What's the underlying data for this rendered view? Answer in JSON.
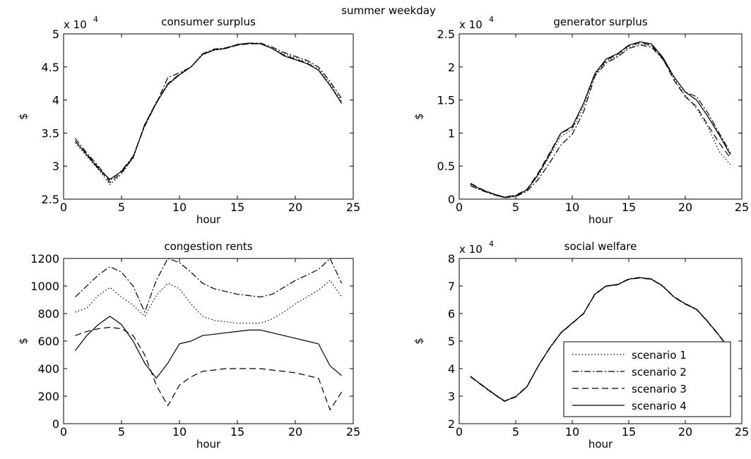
{
  "figure": {
    "suptitle": "summer weekday"
  },
  "chart_data": [
    {
      "type": "line",
      "title": "consumer surplus",
      "xlabel": "hour",
      "ylabel": "$",
      "exponent_label": "x 10",
      "exponent": "4",
      "xlim": [
        0,
        25
      ],
      "ylim": [
        2.5,
        5
      ],
      "xticks": [
        0,
        5,
        10,
        15,
        20,
        25
      ],
      "yticks": [
        2.5,
        3,
        3.5,
        4,
        4.5,
        5
      ],
      "x": [
        1,
        2,
        3,
        4,
        5,
        6,
        7,
        8,
        9,
        10,
        11,
        12,
        13,
        14,
        15,
        16,
        17,
        18,
        19,
        20,
        21,
        22,
        23,
        24
      ],
      "series": [
        {
          "name": "scenario 1",
          "dash": "dotted",
          "values": [
            3.35,
            3.15,
            2.95,
            2.72,
            2.88,
            3.12,
            3.62,
            3.97,
            4.22,
            4.38,
            4.5,
            4.68,
            4.75,
            4.78,
            4.83,
            4.85,
            4.85,
            4.78,
            4.7,
            4.64,
            4.58,
            4.47,
            4.25,
            3.98
          ]
        },
        {
          "name": "scenario 2",
          "dash": "dashdot",
          "values": [
            3.42,
            3.2,
            3.0,
            2.78,
            2.93,
            3.15,
            3.6,
            3.95,
            4.34,
            4.41,
            4.5,
            4.7,
            4.77,
            4.79,
            4.84,
            4.86,
            4.86,
            4.8,
            4.72,
            4.66,
            4.6,
            4.5,
            4.28,
            4.02
          ]
        },
        {
          "name": "scenario 3",
          "dash": "dashed",
          "values": [
            3.38,
            3.18,
            2.98,
            2.75,
            2.9,
            3.13,
            3.63,
            3.96,
            4.25,
            4.39,
            4.5,
            4.69,
            4.76,
            4.78,
            4.83,
            4.85,
            4.85,
            4.78,
            4.68,
            4.62,
            4.56,
            4.45,
            4.22,
            3.95
          ]
        },
        {
          "name": "scenario 4",
          "dash": "solid",
          "values": [
            3.38,
            3.17,
            2.96,
            2.8,
            2.92,
            3.13,
            3.62,
            3.95,
            4.24,
            4.38,
            4.5,
            4.69,
            4.76,
            4.78,
            4.84,
            4.86,
            4.85,
            4.78,
            4.67,
            4.61,
            4.55,
            4.45,
            4.22,
            3.95
          ]
        }
      ]
    },
    {
      "type": "line",
      "title": "generator surplus",
      "xlabel": "hour",
      "ylabel": "$",
      "exponent_label": "x 10",
      "exponent": "4",
      "xlim": [
        0,
        25
      ],
      "ylim": [
        0,
        2.5
      ],
      "xticks": [
        0,
        5,
        10,
        15,
        20,
        25
      ],
      "yticks": [
        0,
        0.5,
        1,
        1.5,
        2,
        2.5
      ],
      "x": [
        1,
        2,
        3,
        4,
        5,
        6,
        7,
        8,
        9,
        10,
        11,
        12,
        13,
        14,
        15,
        16,
        17,
        18,
        19,
        20,
        21,
        22,
        23,
        24
      ],
      "series": [
        {
          "name": "scenario 1",
          "dash": "dotted",
          "values": [
            0.22,
            0.14,
            0.07,
            0.02,
            0.05,
            0.14,
            0.35,
            0.65,
            0.95,
            1.05,
            1.4,
            1.88,
            2.08,
            2.17,
            2.3,
            2.35,
            2.32,
            2.13,
            1.82,
            1.57,
            1.37,
            1.09,
            0.72,
            0.52
          ]
        },
        {
          "name": "scenario 2",
          "dash": "dashdot",
          "values": [
            0.2,
            0.13,
            0.07,
            0.02,
            0.04,
            0.12,
            0.3,
            0.55,
            0.82,
            0.98,
            1.32,
            1.86,
            2.06,
            2.15,
            2.28,
            2.33,
            2.3,
            2.12,
            1.85,
            1.62,
            1.55,
            1.3,
            1.0,
            0.7
          ]
        },
        {
          "name": "scenario 3",
          "dash": "dashed",
          "values": [
            0.24,
            0.15,
            0.08,
            0.03,
            0.06,
            0.15,
            0.4,
            0.7,
            1.0,
            1.08,
            1.45,
            1.9,
            2.1,
            2.19,
            2.32,
            2.37,
            2.33,
            2.13,
            1.8,
            1.55,
            1.4,
            1.12,
            0.85,
            0.62
          ]
        },
        {
          "name": "scenario 4",
          "dash": "solid",
          "values": [
            0.23,
            0.14,
            0.08,
            0.03,
            0.05,
            0.14,
            0.38,
            0.68,
            1.0,
            1.1,
            1.45,
            1.9,
            2.12,
            2.2,
            2.33,
            2.38,
            2.35,
            2.15,
            1.85,
            1.62,
            1.5,
            1.25,
            0.97,
            0.67
          ]
        }
      ]
    },
    {
      "type": "line",
      "title": "congestion rents",
      "xlabel": "hour",
      "ylabel": "$",
      "xlim": [
        0,
        25
      ],
      "ylim": [
        0,
        1200
      ],
      "xticks": [
        0,
        5,
        10,
        15,
        20,
        25
      ],
      "yticks": [
        0,
        200,
        400,
        600,
        800,
        1000,
        1200
      ],
      "x": [
        1,
        2,
        3,
        4,
        5,
        6,
        7,
        8,
        9,
        10,
        11,
        12,
        13,
        14,
        15,
        16,
        17,
        18,
        19,
        20,
        21,
        22,
        23,
        24
      ],
      "series": [
        {
          "name": "scenario 1",
          "dash": "dotted",
          "values": [
            810,
            840,
            930,
            990,
            920,
            860,
            780,
            930,
            1020,
            980,
            870,
            780,
            750,
            740,
            730,
            730,
            730,
            760,
            810,
            870,
            920,
            970,
            1040,
            920
          ]
        },
        {
          "name": "scenario 2",
          "dash": "dashdot",
          "values": [
            920,
            1000,
            1080,
            1140,
            1100,
            1000,
            810,
            1040,
            1200,
            1170,
            1100,
            1020,
            980,
            960,
            940,
            930,
            920,
            940,
            990,
            1040,
            1080,
            1120,
            1200,
            1020
          ]
        },
        {
          "name": "scenario 3",
          "dash": "dashed",
          "values": [
            640,
            670,
            690,
            700,
            690,
            640,
            500,
            280,
            130,
            280,
            340,
            380,
            390,
            400,
            400,
            400,
            400,
            390,
            380,
            370,
            350,
            330,
            100,
            230
          ]
        },
        {
          "name": "scenario 4",
          "dash": "solid",
          "values": [
            530,
            640,
            720,
            780,
            720,
            600,
            440,
            330,
            440,
            580,
            600,
            640,
            650,
            660,
            670,
            680,
            680,
            660,
            640,
            620,
            600,
            580,
            420,
            350
          ]
        }
      ]
    },
    {
      "type": "line",
      "title": "social welfare",
      "xlabel": "hour",
      "ylabel": "$",
      "exponent_label": "x 10",
      "exponent": "4",
      "xlim": [
        0,
        25
      ],
      "ylim": [
        2,
        8
      ],
      "xticks": [
        0,
        5,
        10,
        15,
        20,
        25
      ],
      "yticks": [
        2,
        3,
        4,
        5,
        6,
        7,
        8
      ],
      "x": [
        1,
        2,
        3,
        4,
        5,
        6,
        7,
        8,
        9,
        10,
        11,
        12,
        13,
        14,
        15,
        16,
        17,
        18,
        19,
        20,
        21,
        22,
        23,
        24
      ],
      "legend": {
        "location": "lower-right",
        "entries": [
          "scenario 1",
          "scenario 2",
          "scenario 3",
          "scenario 4"
        ]
      },
      "series": [
        {
          "name": "scenario 1",
          "dash": "dotted",
          "values": [
            3.72,
            3.4,
            3.1,
            2.82,
            2.98,
            3.35,
            4.1,
            4.75,
            5.3,
            5.65,
            6.0,
            6.7,
            7.0,
            7.05,
            7.25,
            7.3,
            7.25,
            7.0,
            6.6,
            6.35,
            6.15,
            5.7,
            5.2,
            4.65
          ]
        },
        {
          "name": "scenario 2",
          "dash": "dashdot",
          "values": [
            3.72,
            3.41,
            3.11,
            2.83,
            2.99,
            3.36,
            4.11,
            4.76,
            5.31,
            5.66,
            6.01,
            6.71,
            7.01,
            7.06,
            7.26,
            7.31,
            7.26,
            7.01,
            6.61,
            6.36,
            6.16,
            5.71,
            5.21,
            4.66
          ]
        },
        {
          "name": "scenario 3",
          "dash": "dashed",
          "values": [
            3.7,
            3.39,
            3.09,
            2.81,
            2.97,
            3.34,
            4.09,
            4.74,
            5.29,
            5.64,
            5.99,
            6.69,
            6.99,
            7.04,
            7.24,
            7.29,
            7.24,
            6.99,
            6.59,
            6.34,
            6.14,
            5.69,
            5.19,
            4.64
          ]
        },
        {
          "name": "scenario 4",
          "dash": "solid",
          "values": [
            3.71,
            3.4,
            3.1,
            2.82,
            2.98,
            3.35,
            4.1,
            4.75,
            5.3,
            5.65,
            6.0,
            6.7,
            7.0,
            7.05,
            7.25,
            7.3,
            7.25,
            7.0,
            6.6,
            6.35,
            6.15,
            5.7,
            5.2,
            4.65
          ]
        }
      ]
    }
  ]
}
